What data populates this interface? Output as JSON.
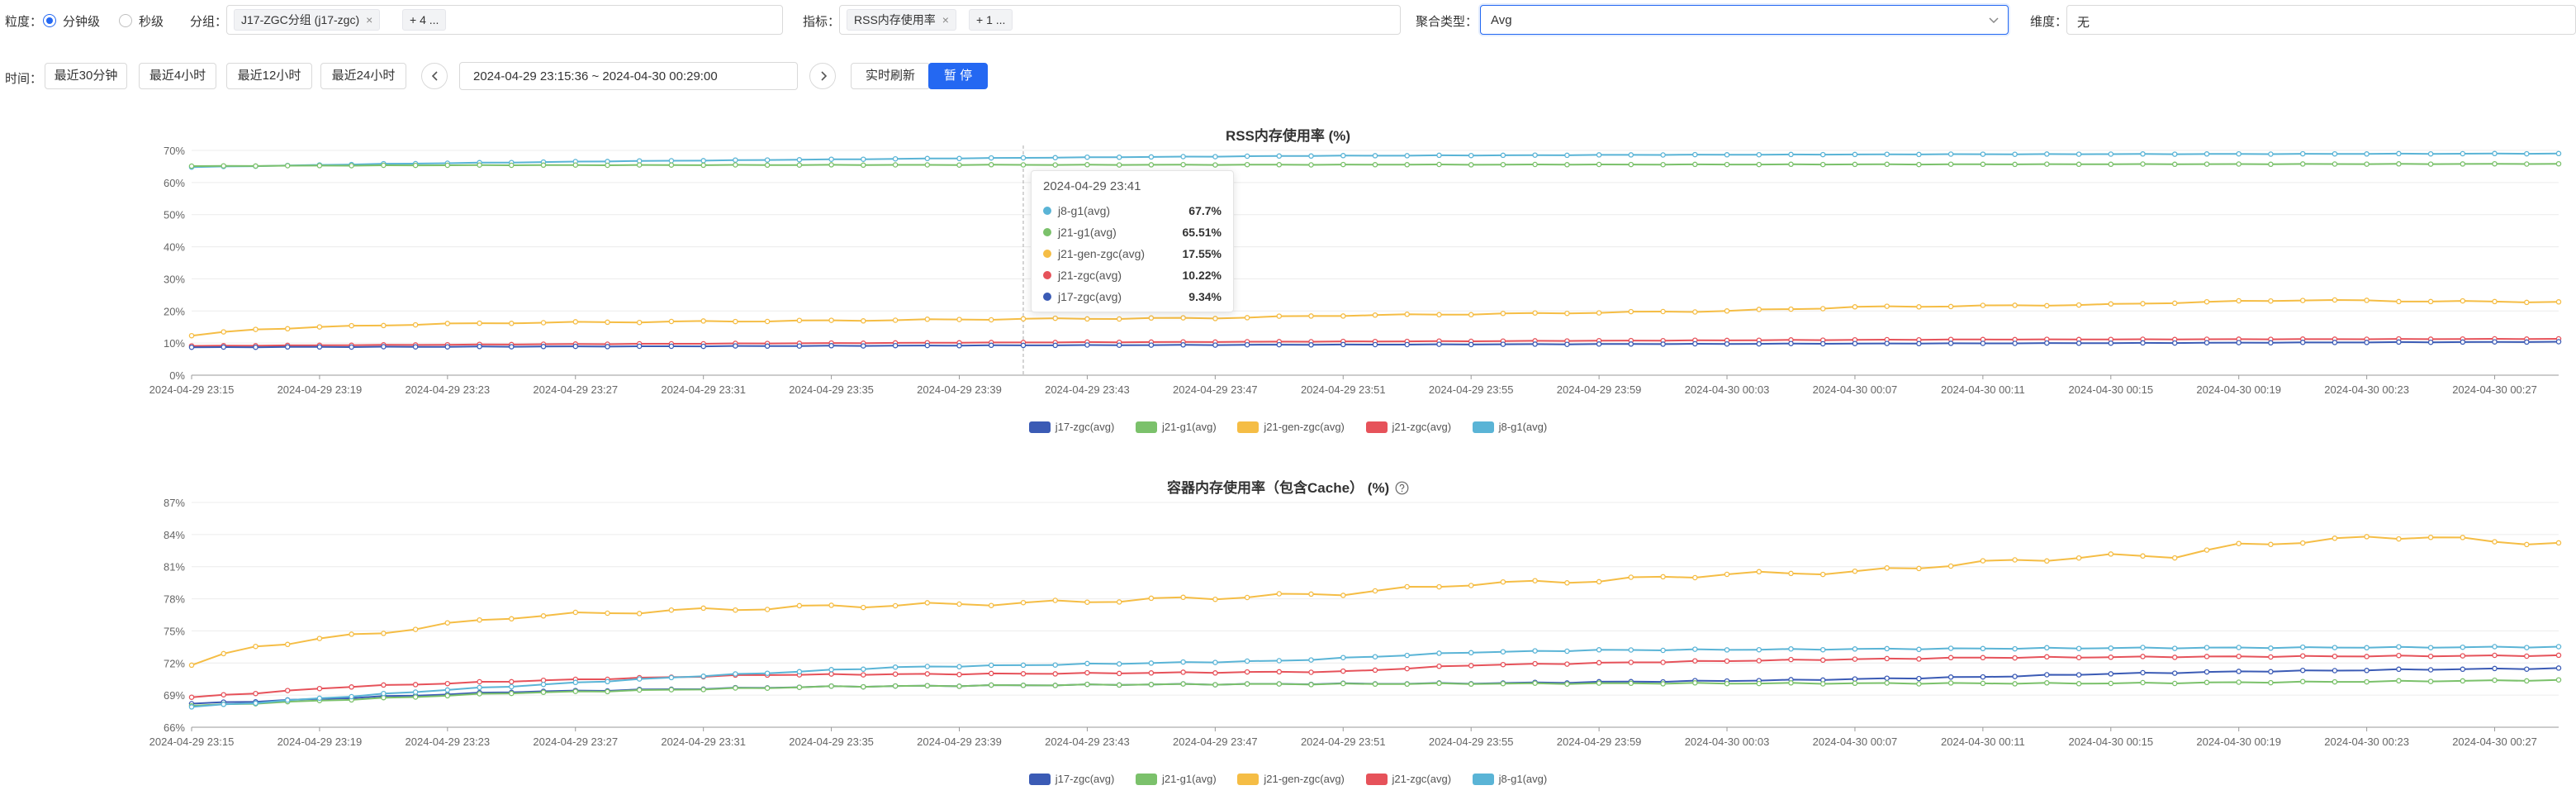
{
  "filters": {
    "granularity_label": "粒度：",
    "granularity_options": [
      "分钟级",
      "秒级"
    ],
    "group_label": "分组：",
    "group_tag": "J17-ZGC分组 (j17-zgc)",
    "group_more": "+ 4 ...",
    "metric_label": "指标：",
    "metric_tag": "RSS内存使用率",
    "metric_more": "+ 1 ...",
    "agg_label": "聚合类型：",
    "agg_value": "Avg",
    "dim_label": "维度：",
    "dim_value": "无",
    "tag_close": "×"
  },
  "time": {
    "label": "时间：",
    "quick": [
      "最近30分钟",
      "最近4小时",
      "最近12小时",
      "最近24小时"
    ],
    "range": "2024-04-29 23:15:36  ~ 2024-04-30 00:29:00",
    "realtime_label": "实时刷新",
    "pause_label": "暂 停"
  },
  "colors": {
    "j17-zgc": "#3b5bb5",
    "j21-g1": "#7bc16b",
    "j21-gen-zgc": "#f5bd45",
    "j21-zgc": "#e6525a",
    "j8-g1": "#5ab4d6",
    "accent": "#2468f2"
  },
  "x_ticks": [
    "2024-04-29 23:15",
    "2024-04-29 23:19",
    "2024-04-29 23:23",
    "2024-04-29 23:27",
    "2024-04-29 23:31",
    "2024-04-29 23:35",
    "2024-04-29 23:39",
    "2024-04-29 23:43",
    "2024-04-29 23:47",
    "2024-04-29 23:51",
    "2024-04-29 23:55",
    "2024-04-29 23:59",
    "2024-04-30 00:03",
    "2024-04-30 00:07",
    "2024-04-30 00:11",
    "2024-04-30 00:15",
    "2024-04-30 00:19",
    "2024-04-30 00:23",
    "2024-04-30 00:27"
  ],
  "legend": [
    "j17-zgc(avg)",
    "j21-g1(avg)",
    "j21-gen-zgc(avg)",
    "j21-zgc(avg)",
    "j8-g1(avg)"
  ],
  "tooltip": {
    "time": "2024-04-29 23:41",
    "rows": [
      {
        "name": "j8-g1(avg)",
        "value": "67.7%",
        "series": "j8-g1"
      },
      {
        "name": "j21-g1(avg)",
        "value": "65.51%",
        "series": "j21-g1"
      },
      {
        "name": "j21-gen-zgc(avg)",
        "value": "17.55%",
        "series": "j21-gen-zgc"
      },
      {
        "name": "j21-zgc(avg)",
        "value": "10.22%",
        "series": "j21-zgc"
      },
      {
        "name": "j17-zgc(avg)",
        "value": "9.34%",
        "series": "j17-zgc"
      }
    ]
  },
  "chart_data": [
    {
      "type": "line",
      "title": "RSS内存使用率 (%)",
      "x_start": "2024-04-29 23:15",
      "x_end": "2024-04-30 00:29",
      "ylim": [
        0,
        70
      ],
      "y_ticks": [
        "0%",
        "10%",
        "20%",
        "30%",
        "40%",
        "50%",
        "60%",
        "70%"
      ],
      "y_tick_values": [
        0,
        10,
        20,
        30,
        40,
        50,
        60,
        70
      ],
      "series": [
        {
          "key": "j8-g1",
          "name": "j8-g1(avg)",
          "anchors": [
            [
              0,
              64.8
            ],
            [
              6,
              65.8
            ],
            [
              13,
              66.6
            ],
            [
              20,
              67.2
            ],
            [
              26,
              67.7
            ],
            [
              35,
              68.3
            ],
            [
              45,
              68.6
            ],
            [
              55,
              68.8
            ],
            [
              65,
              68.9
            ],
            [
              74,
              69.0
            ]
          ]
        },
        {
          "key": "j21-g1",
          "name": "j21-g1(avg)",
          "anchors": [
            [
              0,
              65.1
            ],
            [
              8,
              65.4
            ],
            [
              26,
              65.5
            ],
            [
              45,
              65.6
            ],
            [
              60,
              65.7
            ],
            [
              74,
              65.8
            ]
          ]
        },
        {
          "key": "j21-gen-zgc",
          "name": "j21-gen-zgc(avg)",
          "anchors": [
            [
              0,
              12.3
            ],
            [
              2,
              14.3
            ],
            [
              6,
              15.6
            ],
            [
              10,
              16.3
            ],
            [
              14,
              16.6
            ],
            [
              20,
              17.0
            ],
            [
              26,
              17.5
            ],
            [
              32,
              17.8
            ],
            [
              36,
              18.6
            ],
            [
              40,
              19.0
            ],
            [
              44,
              19.5
            ],
            [
              48,
              20.0
            ],
            [
              52,
              21.2
            ],
            [
              56,
              21.6
            ],
            [
              60,
              22.0
            ],
            [
              62,
              22.6
            ],
            [
              66,
              23.4
            ],
            [
              70,
              23.0
            ],
            [
              74,
              22.8
            ]
          ]
        },
        {
          "key": "j21-zgc",
          "name": "j21-zgc(avg)",
          "anchors": [
            [
              0,
              9.1
            ],
            [
              10,
              9.6
            ],
            [
              26,
              10.2
            ],
            [
              40,
              10.6
            ],
            [
              55,
              11.1
            ],
            [
              74,
              11.3
            ]
          ]
        },
        {
          "key": "j17-zgc",
          "name": "j17-zgc(avg)",
          "anchors": [
            [
              0,
              8.7
            ],
            [
              15,
              9.0
            ],
            [
              26,
              9.3
            ],
            [
              45,
              9.7
            ],
            [
              60,
              10.0
            ],
            [
              74,
              10.4
            ]
          ]
        }
      ]
    },
    {
      "type": "line",
      "title": "容器内存使用率（包含Cache） (%)",
      "x_start": "2024-04-29 23:15",
      "x_end": "2024-04-30 00:29",
      "ylim": [
        66,
        87
      ],
      "y_ticks": [
        "66%",
        "69%",
        "72%",
        "75%",
        "78%",
        "81%",
        "84%",
        "87%"
      ],
      "y_tick_values": [
        66,
        69,
        72,
        75,
        78,
        81,
        84,
        87
      ],
      "series": [
        {
          "key": "j17-zgc",
          "name": "j17-zgc(avg)",
          "anchors": [
            [
              0,
              68.2
            ],
            [
              10,
              69.3
            ],
            [
              20,
              69.8
            ],
            [
              30,
              70.0
            ],
            [
              40,
              70.1
            ],
            [
              50,
              70.4
            ],
            [
              56,
              70.7
            ],
            [
              60,
              71.0
            ],
            [
              64,
              71.2
            ],
            [
              70,
              71.4
            ],
            [
              74,
              71.5
            ]
          ]
        },
        {
          "key": "j21-g1",
          "name": "j21-g1(avg)",
          "anchors": [
            [
              0,
              68.0
            ],
            [
              10,
              69.2
            ],
            [
              20,
              69.8
            ],
            [
              30,
              70.0
            ],
            [
              45,
              70.1
            ],
            [
              60,
              70.1
            ],
            [
              74,
              70.4
            ]
          ]
        },
        {
          "key": "j21-gen-zgc",
          "name": "j21-gen-zgc(avg)",
          "anchors": [
            [
              0,
              71.8
            ],
            [
              2,
              73.6
            ],
            [
              4,
              74.2
            ],
            [
              6,
              74.9
            ],
            [
              8,
              75.6
            ],
            [
              10,
              76.3
            ],
            [
              14,
              76.8
            ],
            [
              20,
              77.3
            ],
            [
              26,
              77.6
            ],
            [
              32,
              78.1
            ],
            [
              36,
              78.5
            ],
            [
              40,
              79.4
            ],
            [
              44,
              79.7
            ],
            [
              48,
              80.3
            ],
            [
              52,
              80.5
            ],
            [
              56,
              81.4
            ],
            [
              60,
              82.0
            ],
            [
              62,
              82.0
            ],
            [
              64,
              83.0
            ],
            [
              68,
              83.7
            ],
            [
              70,
              83.8
            ],
            [
              72,
              83.3
            ],
            [
              74,
              83.2
            ]
          ]
        },
        {
          "key": "j21-zgc",
          "name": "j21-zgc(avg)",
          "anchors": [
            [
              0,
              68.8
            ],
            [
              5,
              69.8
            ],
            [
              10,
              70.3
            ],
            [
              18,
              70.9
            ],
            [
              26,
              71.0
            ],
            [
              36,
              71.2
            ],
            [
              40,
              71.8
            ],
            [
              48,
              72.2
            ],
            [
              56,
              72.5
            ],
            [
              64,
              72.6
            ],
            [
              74,
              72.7
            ]
          ]
        },
        {
          "key": "j8-g1",
          "name": "j8-g1(avg)",
          "anchors": [
            [
              0,
              67.9
            ],
            [
              8,
              69.5
            ],
            [
              16,
              70.8
            ],
            [
              22,
              71.6
            ],
            [
              28,
              71.9
            ],
            [
              34,
              72.2
            ],
            [
              40,
              73.0
            ],
            [
              44,
              73.2
            ],
            [
              60,
              73.4
            ],
            [
              74,
              73.5
            ]
          ]
        }
      ]
    }
  ]
}
